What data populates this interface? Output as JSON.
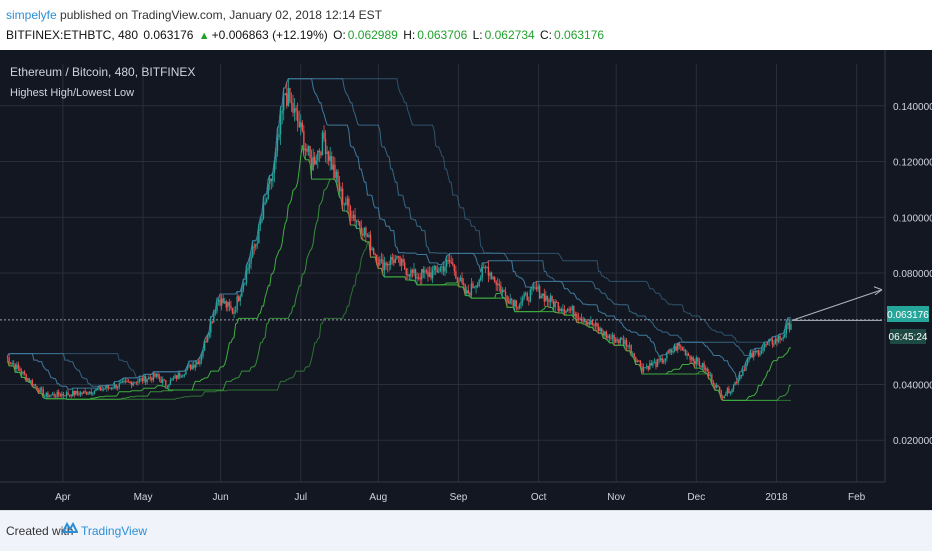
{
  "header": {
    "author": "simpelyfe",
    "published_text": " published on TradingView.com, January 02, 2018 12:14 EST",
    "symbol": "BITFINEX:ETHBTC, 480",
    "last": "0.063176",
    "change": "+0.006863 (+12.19%)",
    "open_label": "O:",
    "open": "0.062989",
    "high_label": "H:",
    "high": "0.063706",
    "low_label": "L:",
    "low": "0.062734",
    "close_label": "C:",
    "close": "0.063176"
  },
  "legend": {
    "title": "Ethereum / Bitcoin, 480, BITFINEX",
    "indicator": "Highest High/Lowest Low"
  },
  "price_tag": {
    "price": "0.063176",
    "countdown": "06:45:24"
  },
  "footer": {
    "created": "Created with",
    "brand": "TradingView"
  },
  "colors": {
    "background": "#131722",
    "grid": "#2a2e39",
    "axis_text": "#d1d4dc",
    "up_candle": "#26a69a",
    "down_candle": "#ef5350",
    "highest_high": "#3f7a9c",
    "lowest_low": "#3fae3f",
    "price_tag": "#26a69a"
  },
  "chart_data": {
    "type": "candlestick",
    "x_ticks": [
      "Apr",
      "May",
      "Jun",
      "Jul",
      "Aug",
      "Sep",
      "Oct",
      "Nov",
      "Dec",
      "2018",
      "Feb"
    ],
    "y_ticks": [
      "0.140000",
      "0.120000",
      "0.100000",
      "0.080000",
      "0.040000",
      "0.020000"
    ],
    "ylim": [
      0.005,
      0.155
    ],
    "last_price": 0.063176,
    "projection": {
      "from": 0.063,
      "to": 0.074
    },
    "series": [
      {
        "name": "price",
        "points": [
          [
            0,
            0.05
          ],
          [
            15,
            0.036
          ],
          [
            30,
            0.037
          ],
          [
            45,
            0.04
          ],
          [
            58,
            0.043
          ],
          [
            62,
            0.04
          ],
          [
            75,
            0.049
          ],
          [
            82,
            0.071
          ],
          [
            88,
            0.066
          ],
          [
            97,
            0.092
          ],
          [
            104,
            0.119
          ],
          [
            108,
            0.145
          ],
          [
            113,
            0.134
          ],
          [
            118,
            0.119
          ],
          [
            123,
            0.128
          ],
          [
            130,
            0.107
          ],
          [
            138,
            0.096
          ],
          [
            145,
            0.083
          ],
          [
            150,
            0.085
          ],
          [
            158,
            0.079
          ],
          [
            165,
            0.08
          ],
          [
            172,
            0.084
          ],
          [
            178,
            0.072
          ],
          [
            186,
            0.082
          ],
          [
            193,
            0.072
          ],
          [
            198,
            0.069
          ],
          [
            205,
            0.074
          ],
          [
            212,
            0.069
          ],
          [
            220,
            0.066
          ],
          [
            226,
            0.062
          ],
          [
            233,
            0.057
          ],
          [
            240,
            0.055
          ],
          [
            246,
            0.046
          ],
          [
            253,
            0.048
          ],
          [
            260,
            0.054
          ],
          [
            266,
            0.049
          ],
          [
            270,
            0.046
          ],
          [
            277,
            0.036
          ],
          [
            281,
            0.039
          ],
          [
            288,
            0.05
          ],
          [
            294,
            0.054
          ],
          [
            300,
            0.057
          ],
          [
            304,
            0.063
          ]
        ]
      },
      {
        "name": "highest high",
        "note": "upper channel lines"
      },
      {
        "name": "lowest low",
        "note": "lower channel lines"
      }
    ]
  }
}
